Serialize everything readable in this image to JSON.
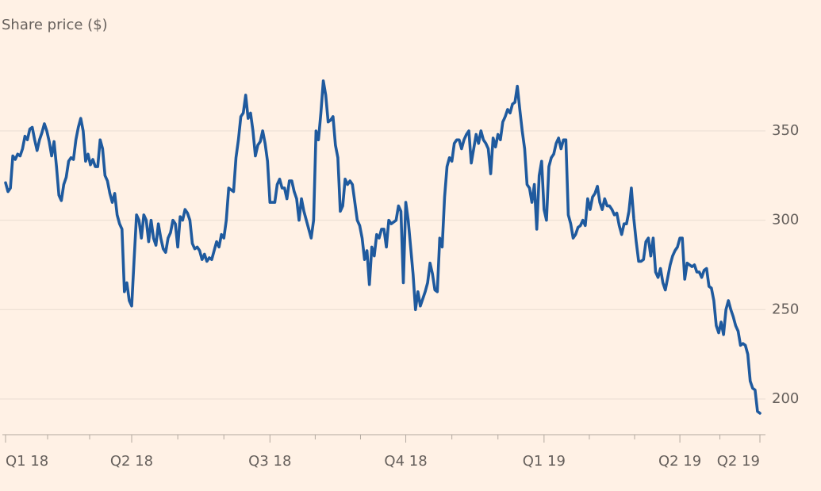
{
  "chart_data": {
    "type": "line",
    "title": "Share price ($)",
    "color": "#1f5a9e",
    "grid": true,
    "ylim": [
      180,
      395
    ],
    "yticks": [
      200,
      250,
      300,
      350
    ],
    "categories": [
      "Q1 18",
      null,
      null,
      null,
      null,
      null,
      null,
      null,
      null,
      null,
      null,
      null,
      null,
      null,
      null,
      null,
      null,
      null,
      null,
      null,
      null,
      null,
      null,
      null,
      null,
      null,
      null,
      null,
      null,
      null,
      null,
      null,
      null,
      null,
      null,
      null,
      null,
      null,
      null,
      null,
      null,
      null,
      null,
      null,
      null,
      null,
      null,
      null,
      null,
      null,
      null,
      null,
      "Q2 18",
      null,
      null,
      null,
      null,
      null,
      null,
      null,
      null,
      null,
      null,
      null,
      null,
      null,
      null,
      null,
      null,
      null,
      null,
      null,
      null,
      null,
      null,
      null,
      null,
      null,
      null,
      null,
      null,
      null,
      null,
      null,
      null,
      null,
      null,
      null,
      null,
      null,
      null,
      null,
      null,
      null,
      null,
      null,
      null,
      null,
      null,
      null,
      null,
      null,
      null,
      null,
      null,
      null,
      null,
      null,
      null,
      "Q3 18",
      null,
      null,
      null,
      null,
      null,
      null,
      null,
      null,
      null,
      null,
      null,
      null,
      null,
      null,
      null,
      null,
      null,
      null,
      null,
      null,
      null,
      null,
      null,
      null,
      null,
      null,
      null,
      null,
      null,
      null,
      null,
      null,
      null,
      null,
      null,
      null,
      null,
      null,
      null,
      null,
      null,
      null,
      null,
      null,
      null,
      null,
      null,
      null,
      null,
      null,
      null,
      null,
      null,
      null,
      null,
      "Q4 18",
      null,
      null,
      null,
      null,
      null,
      null,
      null,
      null,
      null,
      null,
      null,
      null,
      null,
      null,
      null,
      null,
      null,
      null,
      null,
      null,
      null,
      null,
      null,
      null,
      null,
      null,
      null,
      null,
      null,
      null,
      null,
      null,
      null,
      null,
      null,
      null,
      null,
      null,
      null,
      null,
      null,
      null,
      null,
      null,
      null,
      null,
      null,
      null,
      null,
      null,
      null,
      null,
      null,
      null,
      null,
      null,
      "Q1 19",
      null,
      null,
      null,
      null,
      null,
      null,
      null,
      null,
      null,
      null,
      null,
      null,
      null,
      null,
      null,
      null,
      null,
      null,
      null,
      null,
      null,
      null,
      null,
      null,
      null,
      null,
      null,
      null,
      null,
      null,
      null,
      null,
      null,
      null,
      null,
      null,
      null,
      null,
      null,
      null,
      null,
      null,
      null,
      null,
      null,
      null,
      null,
      null,
      null,
      null,
      null,
      null,
      null,
      null,
      null,
      "Q2 19",
      null,
      null,
      null,
      null,
      null,
      null,
      null,
      null,
      null,
      null,
      null,
      null,
      null,
      null,
      null,
      null,
      null,
      null,
      null,
      null,
      null,
      null,
      null,
      null,
      null,
      null,
      null,
      null,
      null,
      null,
      null,
      null,
      "Q2 19"
    ],
    "values": [
      321,
      316,
      318,
      336,
      334,
      337,
      336,
      340,
      347,
      345,
      351,
      352,
      345,
      339,
      345,
      349,
      354,
      350,
      344,
      336,
      344,
      330,
      314,
      311,
      320,
      324,
      333,
      335,
      334,
      345,
      352,
      357,
      350,
      333,
      337,
      331,
      334,
      330,
      330,
      345,
      340,
      325,
      322,
      315,
      310,
      315,
      303,
      298,
      295,
      260,
      265,
      255,
      252,
      278,
      303,
      300,
      290,
      303,
      300,
      288,
      300,
      290,
      286,
      298,
      290,
      284,
      282,
      290,
      293,
      300,
      298,
      285,
      302,
      300,
      306,
      304,
      300,
      287,
      284,
      285,
      283,
      278,
      281,
      277,
      279,
      278,
      283,
      288,
      285,
      292,
      290,
      300,
      318,
      317,
      316,
      335,
      345,
      358,
      360,
      370,
      357,
      360,
      350,
      336,
      342,
      344,
      350,
      343,
      333,
      310,
      310,
      310,
      320,
      323,
      318,
      318,
      312,
      322,
      322,
      316,
      312,
      300,
      312,
      305,
      300,
      295,
      290,
      300,
      350,
      345,
      360,
      378,
      370,
      355,
      356,
      358,
      342,
      335,
      305,
      308,
      323,
      320,
      322,
      320,
      310,
      300,
      297,
      290,
      278,
      283,
      264,
      285,
      280,
      292,
      290,
      295,
      295,
      285,
      300,
      298,
      299,
      300,
      308,
      305,
      265,
      310,
      300,
      285,
      270,
      250,
      260,
      252,
      256,
      260,
      265,
      276,
      270,
      261,
      260,
      290,
      285,
      313,
      330,
      335,
      333,
      343,
      345,
      345,
      340,
      345,
      348,
      350,
      332,
      340,
      348,
      343,
      350,
      345,
      343,
      340,
      326,
      346,
      341,
      348,
      345,
      355,
      358,
      362,
      360,
      365,
      366,
      375,
      362,
      350,
      340,
      320,
      318,
      310,
      320,
      295,
      325,
      333,
      306,
      300,
      330,
      335,
      337,
      343,
      346,
      340,
      345,
      345,
      303,
      298,
      290,
      292,
      296,
      297,
      300,
      297,
      312,
      306,
      313,
      315,
      319,
      310,
      306,
      312,
      308,
      308,
      306,
      303,
      304,
      297,
      292,
      298,
      298,
      305,
      318,
      301,
      288,
      277,
      277,
      278,
      288,
      290,
      280,
      290,
      271,
      268,
      273,
      265,
      261,
      268,
      275,
      280,
      283,
      285,
      290,
      290,
      267,
      276,
      275,
      274,
      275,
      271,
      271,
      268,
      272,
      273,
      263,
      262,
      255,
      241,
      237,
      243,
      236,
      250,
      255,
      250,
      246,
      241,
      238,
      230,
      231,
      230,
      225,
      210,
      206,
      205,
      193,
      192
    ]
  }
}
